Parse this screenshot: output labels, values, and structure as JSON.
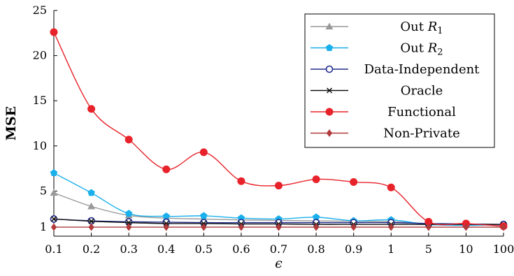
{
  "chart_data": {
    "type": "line",
    "xlabel": "ϵ",
    "ylabel": "MSE",
    "categories": [
      "0.1",
      "0.2",
      "0.3",
      "0.4",
      "0.5",
      "0.6",
      "0.7",
      "0.8",
      "0.9",
      "1",
      "5",
      "10",
      "100"
    ],
    "yticks": [
      1,
      5,
      10,
      15,
      20,
      25
    ],
    "ylim": [
      0,
      25
    ],
    "grid": false,
    "legend_position": "top-right",
    "series": [
      {
        "name": "Out R1",
        "name_prefix": "Out ",
        "name_math": "R",
        "name_sub": "1",
        "color": "#999999",
        "marker": "triangle",
        "values": [
          4.8,
          3.3,
          2.3,
          2.0,
          1.9,
          1.8,
          1.75,
          1.7,
          1.65,
          1.6,
          1.4,
          1.35,
          1.3
        ]
      },
      {
        "name": "Out R2",
        "name_prefix": "Out ",
        "name_math": "R",
        "name_sub": "2",
        "color": "#1ab0ec",
        "marker": "pentagon",
        "values": [
          7.0,
          4.8,
          2.5,
          2.2,
          2.25,
          2.0,
          1.9,
          2.1,
          1.7,
          1.8,
          1.3,
          1.2,
          1.3
        ]
      },
      {
        "name": "Data-Independent",
        "color": "#232b8c",
        "marker": "circle-open",
        "values": [
          1.9,
          1.7,
          1.6,
          1.55,
          1.5,
          1.5,
          1.5,
          1.5,
          1.5,
          1.5,
          1.4,
          1.35,
          1.3
        ]
      },
      {
        "name": "Oracle",
        "color": "#111111",
        "marker": "cross",
        "values": [
          1.9,
          1.65,
          1.5,
          1.4,
          1.4,
          1.35,
          1.35,
          1.3,
          1.3,
          1.3,
          1.3,
          1.3,
          1.3
        ]
      },
      {
        "name": "Functional",
        "color": "#e8222a",
        "marker": "circle",
        "values": [
          22.6,
          14.1,
          10.7,
          7.4,
          9.3,
          6.1,
          5.6,
          6.3,
          6.0,
          5.4,
          1.6,
          1.4,
          1.1
        ]
      },
      {
        "name": "Non-Private",
        "color": "#b13a3a",
        "marker": "diamond",
        "values": [
          1.0,
          1.0,
          1.0,
          1.0,
          1.0,
          1.0,
          1.0,
          1.0,
          1.0,
          1.0,
          1.0,
          1.0,
          1.0
        ]
      }
    ]
  }
}
